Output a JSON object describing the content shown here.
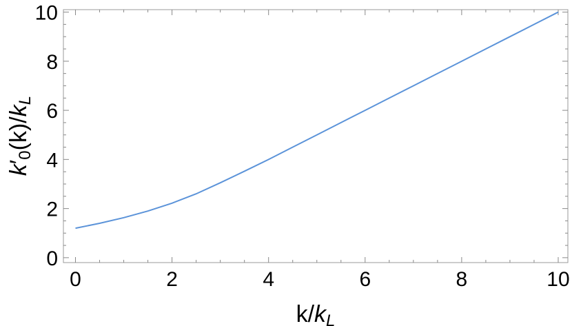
{
  "chart_data": {
    "type": "line",
    "title": "",
    "xlabel": {
      "main": "k/",
      "k": "k",
      "sub": "L"
    },
    "ylabel": {
      "k": "k",
      "prime": "′",
      "sub0": "0",
      "mid": "(k)/",
      "k2": "k",
      "subL": "L"
    },
    "xlim": [
      -0.25,
      10.2
    ],
    "ylim": [
      -0.2,
      10.1
    ],
    "xticks": [
      0,
      2,
      4,
      6,
      8,
      10
    ],
    "yticks": [
      0,
      2,
      4,
      6,
      8,
      10
    ],
    "xtick_labels": [
      "0",
      "2",
      "4",
      "6",
      "8",
      "10"
    ],
    "ytick_labels": [
      "0",
      "2",
      "4",
      "6",
      "8",
      "10"
    ],
    "grid": false,
    "line_color": "#5b93d9",
    "series": [
      {
        "x": [
          0,
          0.5,
          1,
          1.5,
          2,
          2.5,
          3,
          3.5,
          4,
          4.5,
          5,
          5.5,
          6,
          6.5,
          7,
          7.5,
          8,
          8.5,
          9,
          9.5,
          10
        ],
        "y": [
          1.2,
          1.4,
          1.63,
          1.9,
          2.22,
          2.6,
          3.05,
          3.52,
          4.0,
          4.5,
          5.0,
          5.5,
          6.0,
          6.5,
          7.0,
          7.5,
          8.0,
          8.5,
          9.0,
          9.5,
          10.0
        ]
      }
    ]
  }
}
